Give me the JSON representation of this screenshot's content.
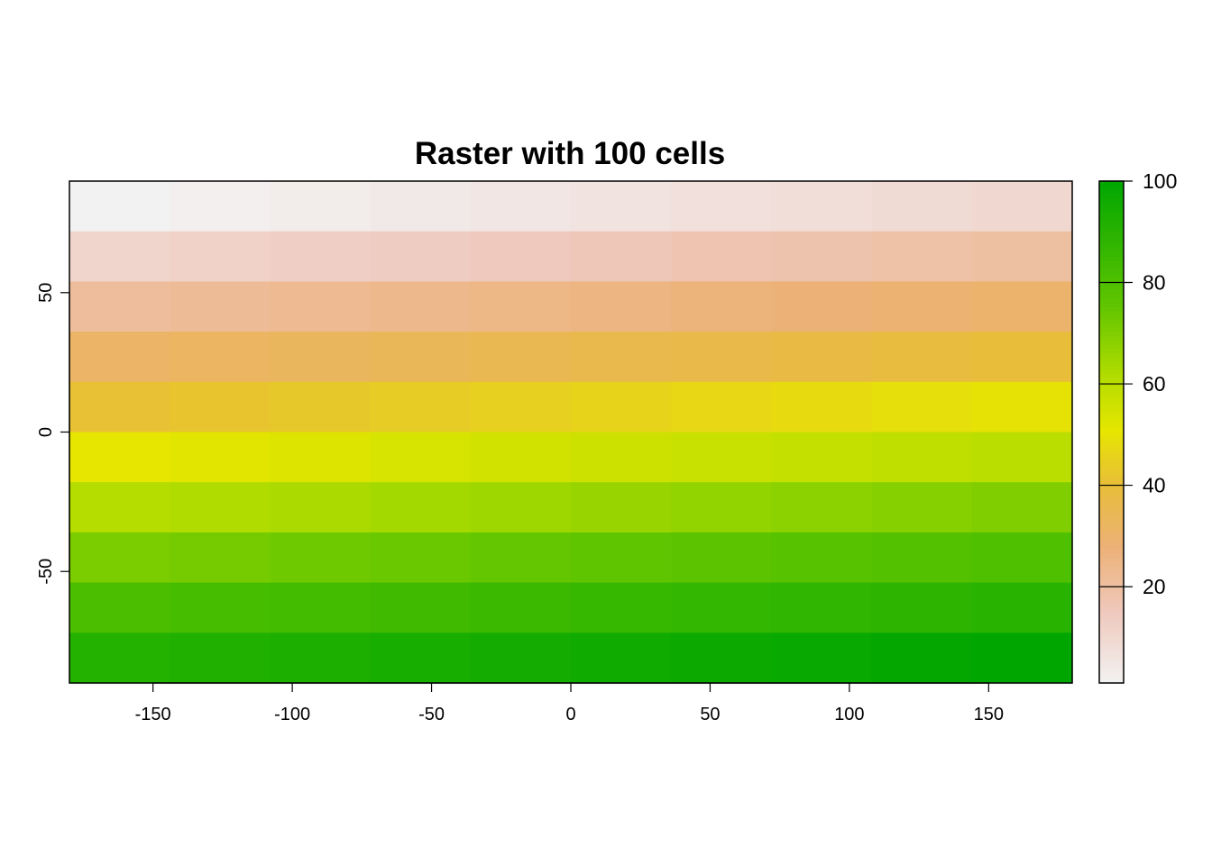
{
  "chart_data": {
    "type": "heatmap",
    "title": "Raster with 100 cells",
    "xlabel": "",
    "ylabel": "",
    "xlim": [
      -180,
      180
    ],
    "ylim": [
      -90,
      90
    ],
    "ncols": 10,
    "nrows": 10,
    "x_ticks": [
      -150,
      -100,
      -50,
      0,
      50,
      100,
      150
    ],
    "y_ticks": [
      -50,
      0,
      50
    ],
    "values_rows_top_to_bottom": [
      [
        1,
        2,
        3,
        4,
        5,
        6,
        7,
        8,
        9,
        10
      ],
      [
        11,
        12,
        13,
        14,
        15,
        16,
        17,
        18,
        19,
        20
      ],
      [
        21,
        22,
        23,
        24,
        25,
        26,
        27,
        28,
        29,
        30
      ],
      [
        31,
        32,
        33,
        34,
        35,
        36,
        37,
        38,
        39,
        40
      ],
      [
        41,
        42,
        43,
        44,
        45,
        46,
        47,
        48,
        49,
        50
      ],
      [
        51,
        52,
        53,
        54,
        55,
        56,
        57,
        58,
        59,
        60
      ],
      [
        61,
        62,
        63,
        64,
        65,
        66,
        67,
        68,
        69,
        70
      ],
      [
        71,
        72,
        73,
        74,
        75,
        76,
        77,
        78,
        79,
        80
      ],
      [
        81,
        82,
        83,
        84,
        85,
        86,
        87,
        88,
        89,
        90
      ],
      [
        91,
        92,
        93,
        94,
        95,
        96,
        97,
        98,
        99,
        100
      ]
    ],
    "value_range": [
      1,
      100
    ],
    "legend": {
      "position": "right",
      "ticks": [
        20,
        40,
        60,
        80,
        100
      ]
    },
    "colors": {
      "low": "#F2F2F2",
      "mid_low": "#ECB176",
      "mid": "#E6E600",
      "mid_high": "#63C600",
      "high": "#00A600",
      "stops": [
        {
          "value": 1,
          "color": "#F2F2F2"
        },
        {
          "value": 15,
          "color": "#EFC9BD"
        },
        {
          "value": 28,
          "color": "#ECB176"
        },
        {
          "value": 40,
          "color": "#E8BD3A"
        },
        {
          "value": 51,
          "color": "#E6E600"
        },
        {
          "value": 62,
          "color": "#B0DC00"
        },
        {
          "value": 75,
          "color": "#63C600"
        },
        {
          "value": 100,
          "color": "#00A600"
        }
      ]
    }
  }
}
